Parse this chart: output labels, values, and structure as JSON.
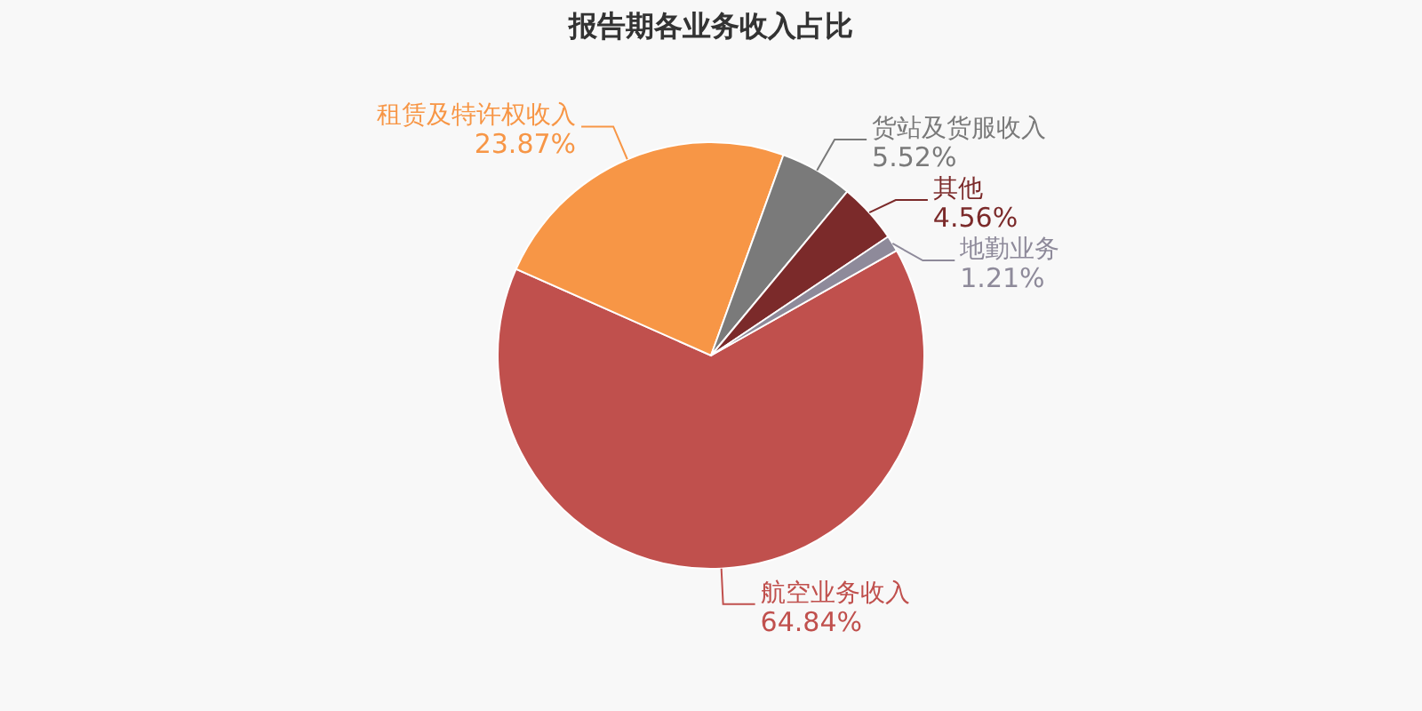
{
  "chart_data": {
    "type": "pie",
    "title": "报告期各业务收入占比",
    "categories": [
      "航空业务收入",
      "租赁及特许权收入",
      "货站及货服收入",
      "其他",
      "地勤业务"
    ],
    "values": [
      64.84,
      23.87,
      5.52,
      4.56,
      1.21
    ],
    "value_labels": [
      "64.84%",
      "23.87%",
      "5.52%",
      "4.56%",
      "1.21%"
    ],
    "colors": [
      "#c0504d",
      "#f79646",
      "#7a7a7a",
      "#7b2a2a",
      "#8e8a9a"
    ]
  }
}
